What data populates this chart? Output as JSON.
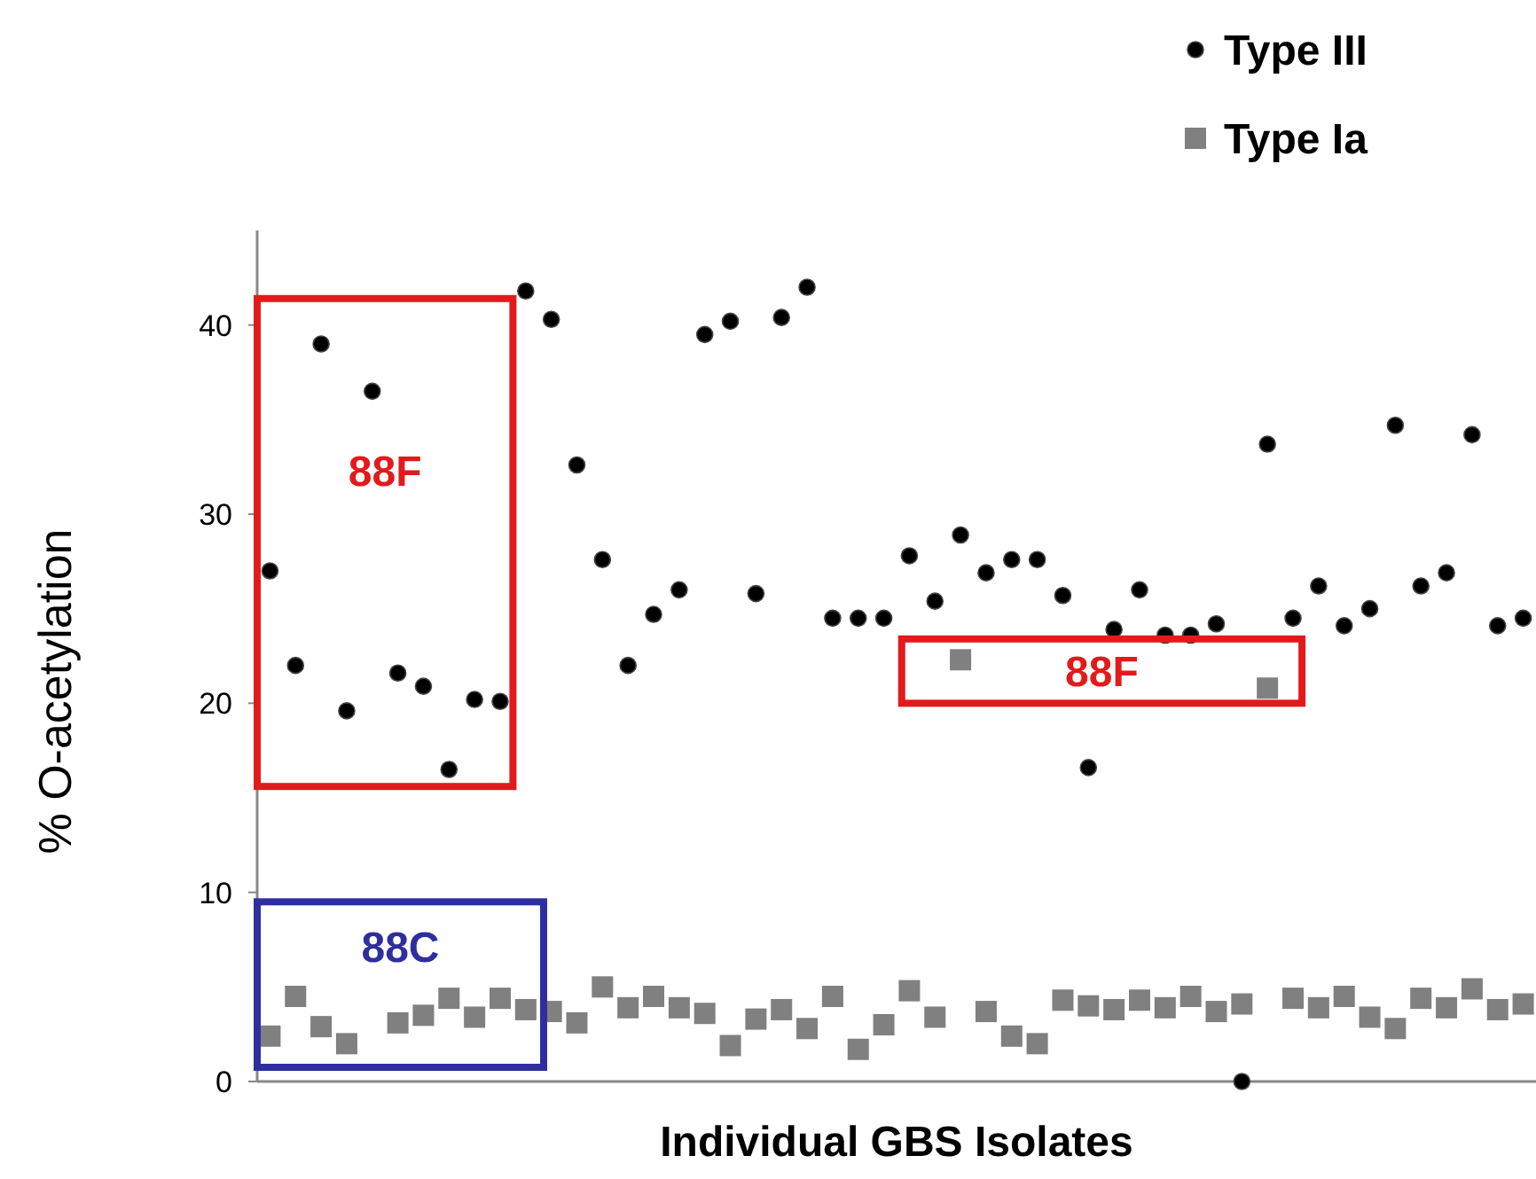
{
  "chart_data": {
    "type": "scatter",
    "xlabel": "Individual GBS Isolates",
    "ylabel": "% O-acetylation",
    "categories": [
      null,
      null,
      null,
      null,
      null,
      null,
      null,
      null,
      null,
      null,
      null,
      null,
      null,
      null,
      null,
      null,
      null,
      null,
      null,
      null,
      null,
      null,
      null,
      null,
      null,
      null,
      null,
      null,
      null,
      null,
      null,
      null,
      null,
      null,
      null,
      null,
      null,
      null,
      null,
      null,
      null,
      null,
      null,
      null,
      null,
      null,
      null,
      null,
      null,
      null
    ],
    "series": [
      {
        "name": "Type III",
        "color": "#000000",
        "marker": "circle",
        "values": [
          27,
          22,
          39,
          19.6,
          36.5,
          21.6,
          20.9,
          16.5,
          20.2,
          20.1,
          41.8,
          40.3,
          32.6,
          27.6,
          22,
          24.7,
          26,
          39.5,
          40.2,
          25.8,
          40.4,
          42,
          24.5,
          24.5,
          24.5,
          27.8,
          25.4,
          28.9,
          26.9,
          27.6,
          27.6,
          25.7,
          16.6,
          23.9,
          26,
          23.6,
          23.6,
          24.2,
          0,
          33.7,
          24.5,
          26.2,
          24.1,
          25,
          34.7,
          26.2,
          26.9,
          34.2,
          24.1,
          24.5
        ]
      },
      {
        "name": "Type Ia",
        "color": "#808080",
        "marker": "square",
        "values": [
          2.4,
          4.5,
          2.9,
          2.0,
          null,
          3.1,
          3.5,
          4.4,
          3.4,
          4.4,
          3.8,
          3.7,
          3.1,
          5.0,
          3.9,
          4.5,
          3.9,
          3.6,
          1.9,
          3.3,
          3.8,
          2.8,
          4.5,
          1.7,
          3.0,
          4.8,
          3.4,
          22.3,
          3.7,
          2.4,
          2.0,
          4.3,
          4.0,
          3.8,
          4.3,
          3.9,
          4.5,
          3.7,
          4.1,
          20.8,
          4.4,
          3.9,
          4.5,
          3.4,
          2.8,
          4.4,
          3.9,
          4.9,
          3.8,
          4.1
        ]
      }
    ],
    "ylim": [
      0,
      45
    ],
    "yticks": [
      0,
      10,
      20,
      30,
      40
    ],
    "grid": false,
    "legend": "top right",
    "annotations": [
      "88F",
      "88F",
      "88C"
    ]
  }
}
